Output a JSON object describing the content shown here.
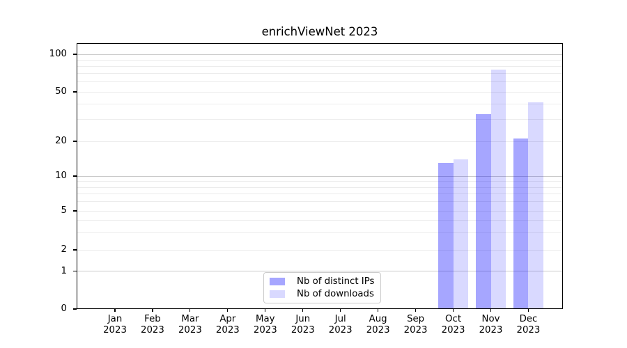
{
  "title": "enrichViewNet 2023",
  "chart_data": {
    "type": "bar",
    "title": "enrichViewNet 2023",
    "categories": [
      "Jan 2023",
      "Feb 2023",
      "Mar 2023",
      "Apr 2023",
      "May 2023",
      "Jun 2023",
      "Jul 2023",
      "Aug 2023",
      "Sep 2023",
      "Oct 2023",
      "Nov 2023",
      "Dec 2023"
    ],
    "series": [
      {
        "name": "Nb of distinct IPs",
        "color": "rgba(0,0,255,0.35)",
        "values": [
          null,
          null,
          null,
          null,
          null,
          null,
          null,
          null,
          null,
          13,
          33,
          21
        ]
      },
      {
        "name": "Nb of downloads",
        "color": "rgba(0,0,255,0.15)",
        "values": [
          null,
          null,
          null,
          null,
          null,
          null,
          null,
          null,
          null,
          14,
          75,
          41
        ]
      }
    ],
    "y_axis": {
      "scale": "symlog",
      "ticks": [
        0,
        1,
        2,
        5,
        10,
        20,
        50,
        100
      ],
      "minor_ticks": [
        3,
        4,
        6,
        7,
        8,
        9,
        30,
        40,
        60,
        70,
        80,
        90
      ],
      "ylim": [
        0,
        120
      ]
    },
    "grid": {
      "horizontal": true,
      "major_color": "#c9c9c9",
      "minor_color": "#ececec"
    },
    "legend": {
      "position": "inside-bottom-center",
      "items": [
        "Nb of distinct IPs",
        "Nb of downloads"
      ]
    }
  }
}
